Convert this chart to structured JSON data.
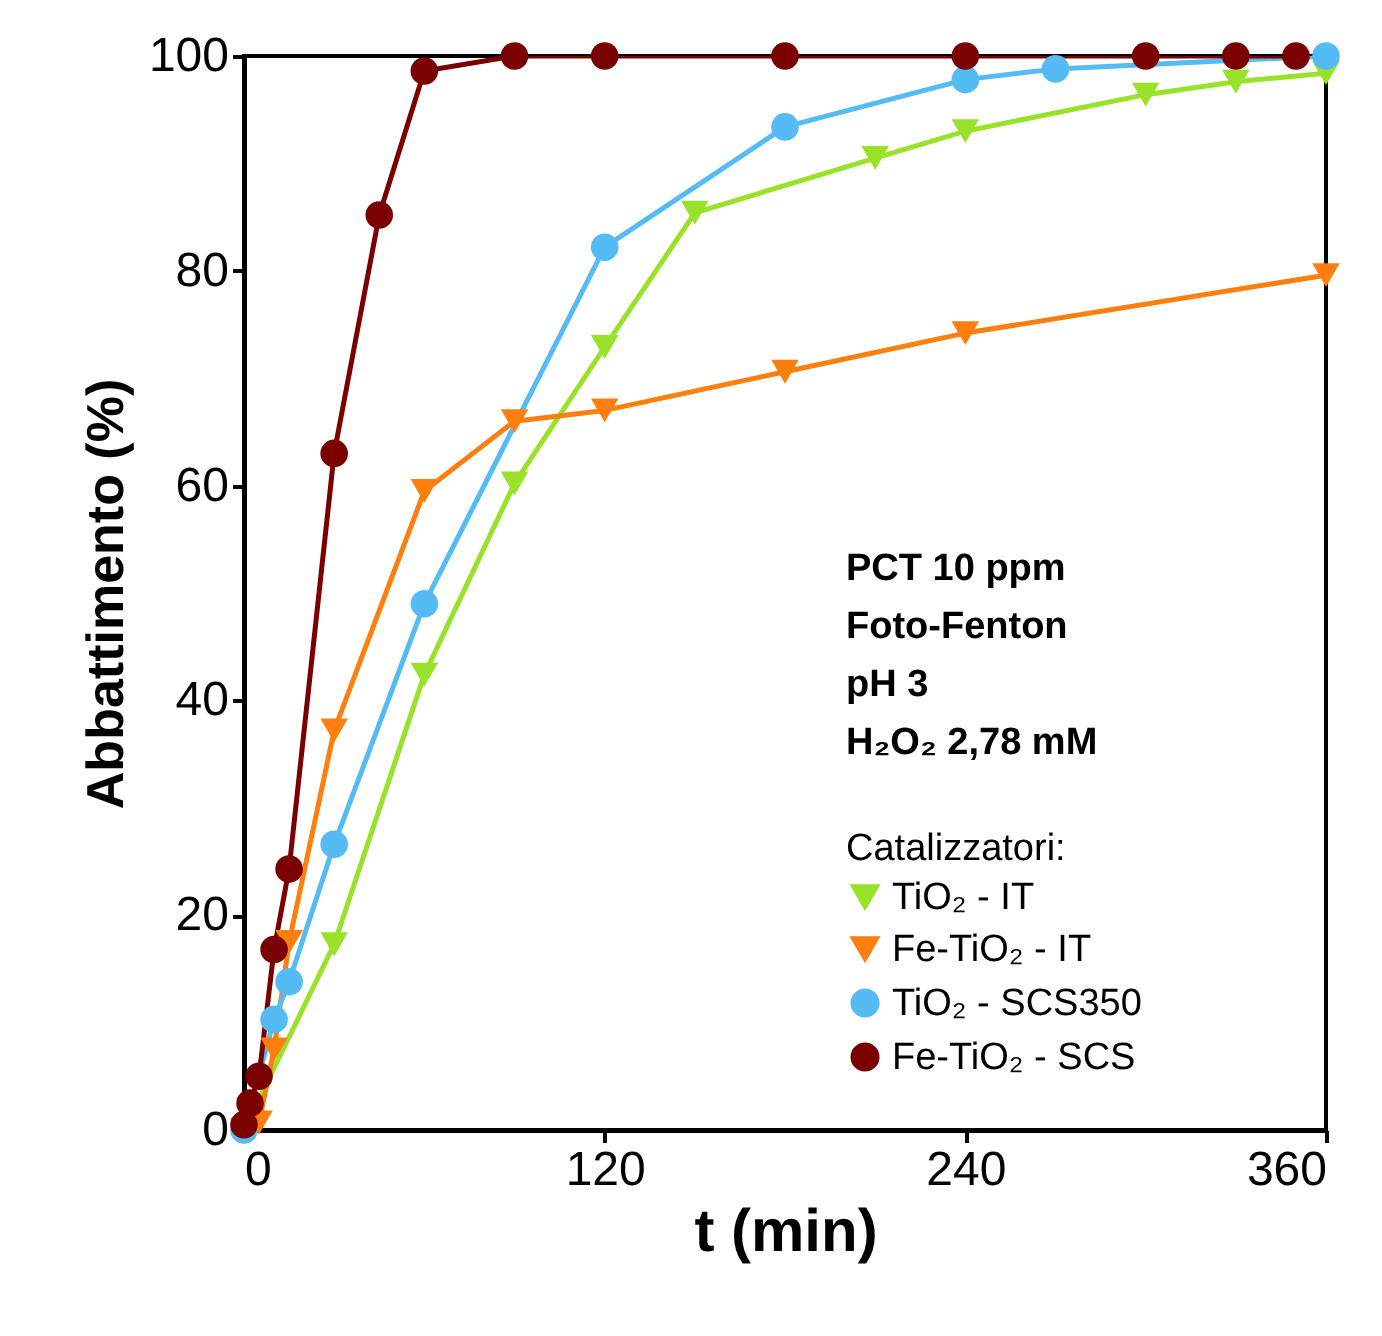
{
  "chart_data": {
    "type": "line",
    "xlabel": "t (min)",
    "ylabel": "Abbattimento (%)",
    "legend_title": "Catalizzatori:",
    "legend": "bottom right",
    "annotations": [
      "PCT 10 ppm",
      "Foto-Fenton",
      "pH 3",
      "H₂O₂ 2,78 mM"
    ],
    "xlim": [
      0,
      360
    ],
    "xticks": [
      0,
      120,
      240,
      360
    ],
    "ylim": [
      0,
      100
    ],
    "yticks": [
      0,
      20,
      40,
      60,
      80,
      100
    ],
    "grid": false,
    "line_style": "solid",
    "series": [
      {
        "name": "TiO₂ - IT",
        "color": "#99e22a",
        "marker": "triangle",
        "x": [
          0,
          5,
          30,
          60,
          90,
          120,
          150,
          210,
          240,
          300,
          330,
          360
        ],
        "values": [
          0,
          null,
          17.3,
          42.4,
          60.2,
          72.9,
          85.4,
          90.5,
          93,
          96.4,
          97.6,
          98.4
        ]
      },
      {
        "name": "Fe-TiO₂ - IT",
        "color": "#ff7f0e",
        "marker": "triangle",
        "x": [
          0,
          5,
          10,
          15,
          30,
          60,
          90,
          120,
          180,
          240,
          360
        ],
        "values": [
          0,
          0.7,
          7.5,
          17.5,
          37.2,
          59.5,
          66,
          67,
          70.6,
          74.2,
          79.6
        ]
      },
      {
        "name": "TiO₂ - SCS350",
        "color": "#55bbf5",
        "marker": "circle",
        "x": [
          0,
          3,
          5,
          10,
          15,
          30,
          60,
          120,
          180,
          240,
          270,
          300,
          360
        ],
        "values": [
          0,
          null,
          null,
          10.3,
          13.8,
          26.6,
          49,
          82.2,
          93.4,
          97.8,
          98.8,
          null,
          100
        ]
      },
      {
        "name": "Fe-TiO₂ - SCS",
        "color": "#7b0000",
        "marker": "circle",
        "x": [
          0,
          2,
          5,
          10,
          15,
          30,
          45,
          60,
          90,
          120,
          180,
          240,
          300,
          330,
          350
        ],
        "values": [
          0.5,
          2.5,
          5,
          16.8,
          24.3,
          63,
          85.2,
          98.6,
          100,
          100,
          100,
          100,
          100,
          100,
          100
        ]
      }
    ]
  }
}
